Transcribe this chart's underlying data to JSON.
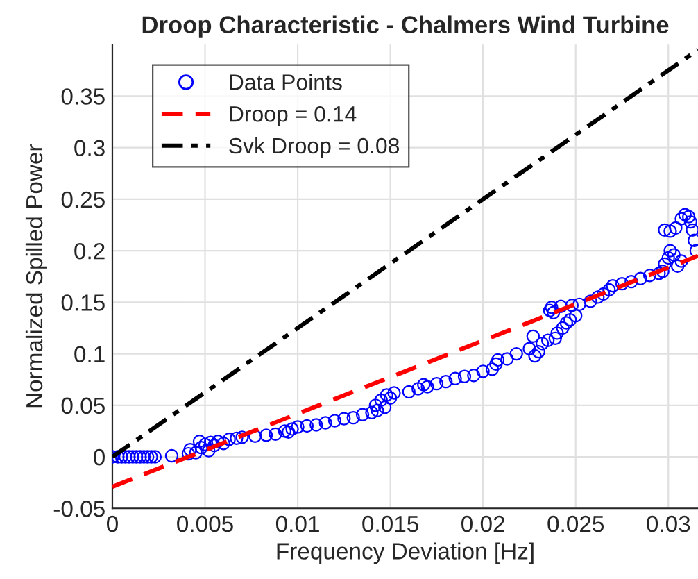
{
  "chart_data": {
    "type": "scatter",
    "title": "Droop Characteristic - Chalmers Wind Turbine",
    "xlabel": "Frequency Deviation [Hz]",
    "ylabel": "Normalized Spilled Power",
    "xlim": [
      0,
      0.0316
    ],
    "ylim": [
      -0.05,
      0.4
    ],
    "xticks": [
      0,
      0.005,
      0.01,
      0.015,
      0.02,
      0.025,
      0.03
    ],
    "yticks": [
      -0.05,
      0,
      0.05,
      0.1,
      0.15,
      0.2,
      0.25,
      0.3,
      0.35
    ],
    "grid": true,
    "legend": "top left",
    "series": [
      {
        "name": "Data Points",
        "marker": "circle",
        "color": "#0000ff",
        "x": [
          0,
          0.0003,
          0.0005,
          0.0007,
          0.0009,
          0.0011,
          0.0013,
          0.0015,
          0.0017,
          0.0019,
          0.0021,
          0.0023,
          0.0032,
          0.0041,
          0.0042,
          0.0045,
          0.0047,
          0.0048,
          0.005,
          0.0052,
          0.0053,
          0.0055,
          0.0057,
          0.006,
          0.0063,
          0.0067,
          0.007,
          0.0077,
          0.0083,
          0.0088,
          0.0093,
          0.0095,
          0.0097,
          0.01,
          0.0105,
          0.011,
          0.0115,
          0.012,
          0.0125,
          0.013,
          0.0135,
          0.014,
          0.0142,
          0.0143,
          0.0145,
          0.0147,
          0.0148,
          0.015,
          0.0152,
          0.016,
          0.0165,
          0.017,
          0.0168,
          0.0175,
          0.018,
          0.0185,
          0.019,
          0.0195,
          0.02,
          0.0205,
          0.0207,
          0.0208,
          0.0213,
          0.0218,
          0.0225,
          0.0227,
          0.0228,
          0.023,
          0.0232,
          0.0235,
          0.0236,
          0.0237,
          0.0238,
          0.0239,
          0.024,
          0.0242,
          0.0243,
          0.0245,
          0.0247,
          0.0248,
          0.025,
          0.0252,
          0.0258,
          0.0262,
          0.0265,
          0.0268,
          0.027,
          0.0275,
          0.028,
          0.0285,
          0.029,
          0.0295,
          0.0297,
          0.0298,
          0.03,
          0.0301,
          0.0303,
          0.0305,
          0.0307,
          0.0298,
          0.0301,
          0.0304,
          0.0307,
          0.0309,
          0.0311,
          0.0312,
          0.0313,
          0.0314,
          0.0315
        ],
        "values": [
          0,
          0,
          0,
          0,
          0,
          0,
          0,
          0,
          0,
          0,
          0,
          0,
          0.001,
          0.003,
          0.007,
          0.004,
          0.015,
          0.009,
          0.012,
          0.006,
          0.014,
          0.011,
          0.015,
          0.013,
          0.017,
          0.018,
          0.019,
          0.02,
          0.021,
          0.022,
          0.025,
          0.024,
          0.027,
          0.029,
          0.03,
          0.031,
          0.033,
          0.035,
          0.037,
          0.038,
          0.041,
          0.043,
          0.05,
          0.045,
          0.055,
          0.048,
          0.06,
          0.057,
          0.062,
          0.063,
          0.066,
          0.068,
          0.07,
          0.071,
          0.073,
          0.076,
          0.078,
          0.079,
          0.083,
          0.085,
          0.09,
          0.094,
          0.095,
          0.1,
          0.105,
          0.117,
          0.098,
          0.102,
          0.11,
          0.113,
          0.142,
          0.145,
          0.14,
          0.115,
          0.12,
          0.146,
          0.125,
          0.13,
          0.133,
          0.147,
          0.137,
          0.148,
          0.151,
          0.155,
          0.158,
          0.162,
          0.166,
          0.168,
          0.17,
          0.173,
          0.176,
          0.178,
          0.18,
          0.187,
          0.193,
          0.2,
          0.196,
          0.185,
          0.19,
          0.22,
          0.219,
          0.222,
          0.231,
          0.235,
          0.233,
          0.228,
          0.22,
          0.21,
          0.2
        ]
      },
      {
        "name": "Droop = 0.14",
        "type": "line",
        "line_style": "dashed",
        "color": "#ff0000",
        "x": [
          0,
          0.0316
        ],
        "values": [
          -0.029,
          0.195
        ]
      },
      {
        "name": "Svk Droop = 0.08",
        "type": "line",
        "line_style": "dashdot",
        "color": "#000000",
        "x": [
          0,
          0.0316
        ],
        "values": [
          0,
          0.395
        ]
      }
    ]
  }
}
